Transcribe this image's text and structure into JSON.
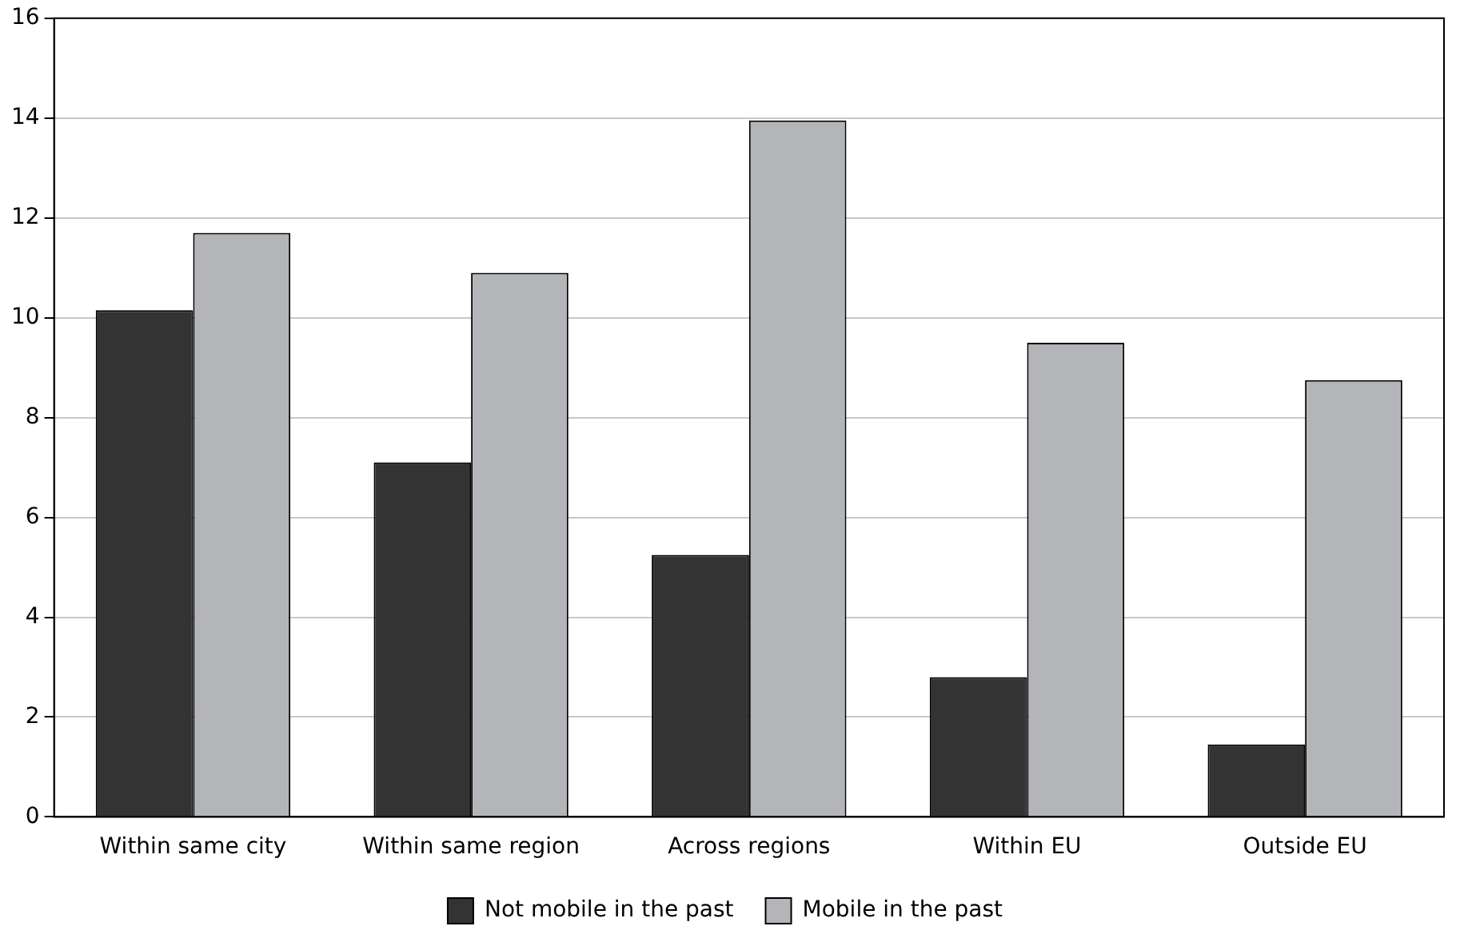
{
  "chart_data": {
    "type": "bar",
    "categories": [
      "Within same city",
      "Within same region",
      "Across regions",
      "Within EU",
      "Outside EU"
    ],
    "series": [
      {
        "name": "Not mobile in the past",
        "color": "#333333",
        "values": [
          10.15,
          7.1,
          5.25,
          2.8,
          1.45
        ]
      },
      {
        "name": "Mobile in the past",
        "color": "#b3b5b8",
        "values": [
          11.7,
          10.9,
          13.95,
          9.5,
          8.75
        ]
      }
    ],
    "ylim": [
      0,
      16
    ],
    "yticks": [
      0,
      2,
      4,
      6,
      8,
      10,
      12,
      14,
      16
    ],
    "grid": "y",
    "legend": "bottom"
  }
}
